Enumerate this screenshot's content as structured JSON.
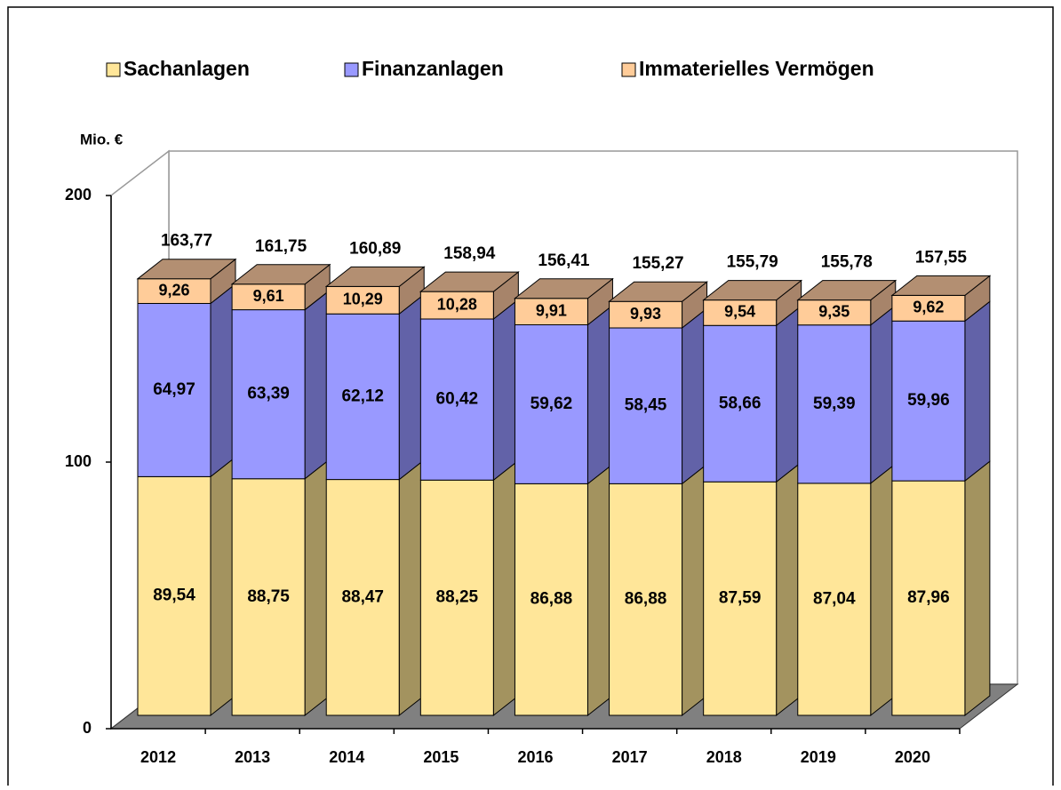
{
  "chart_data": {
    "type": "bar3d_stacked",
    "y_label": "Mio. €",
    "categories": [
      "2012",
      "2013",
      "2014",
      "2015",
      "2016",
      "2017",
      "2018",
      "2019",
      "2020"
    ],
    "series": [
      {
        "name": "Sachanlagen",
        "color": "#ffe699",
        "side_color": "#a3935f",
        "values": [
          89.54,
          88.75,
          88.47,
          88.25,
          86.88,
          86.88,
          87.59,
          87.04,
          87.96
        ],
        "value_labels": [
          "89,54",
          "88,75",
          "88,47",
          "88,25",
          "86,88",
          "86,88",
          "87,59",
          "87,04",
          "87,96"
        ]
      },
      {
        "name": "Finanzanlagen",
        "color": "#9999ff",
        "side_color": "#6262a8",
        "values": [
          64.97,
          63.39,
          62.12,
          60.42,
          59.62,
          58.45,
          58.66,
          59.39,
          59.96
        ],
        "value_labels": [
          "64,97",
          "63,39",
          "62,12",
          "60,42",
          "59,62",
          "58,45",
          "58,66",
          "59,39",
          "59,96"
        ]
      },
      {
        "name": "Immaterielles Vermögen",
        "color": "#ffcc99",
        "side_color": "#a7846a",
        "values": [
          9.26,
          9.61,
          10.29,
          10.28,
          9.91,
          9.93,
          9.54,
          9.35,
          9.62
        ],
        "value_labels": [
          "9,26",
          "9,61",
          "10,29",
          "10,28",
          "9,91",
          "9,93",
          "9,54",
          "9,35",
          "9,62"
        ]
      }
    ],
    "totals": [
      163.77,
      161.75,
      160.89,
      158.94,
      156.41,
      155.27,
      155.79,
      155.78,
      157.55
    ],
    "total_labels": [
      "163,77",
      "161,75",
      "160,89",
      "158,94",
      "156,41",
      "155,27",
      "155,79",
      "155,78",
      "157,55"
    ],
    "ylim": [
      0,
      200
    ],
    "yticks": [
      0,
      100,
      200
    ],
    "legend": "top"
  }
}
